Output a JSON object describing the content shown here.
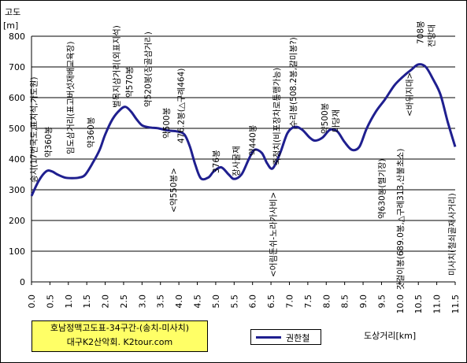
{
  "chart_data": {
    "type": "line",
    "ylabel": "고도",
    "yunit": "[m]",
    "xlabel": "도상거리[km]",
    "ylim": [
      0,
      800
    ],
    "xlim": [
      0,
      11.5
    ],
    "yticks": [
      "0",
      "100",
      "200",
      "300",
      "400",
      "500",
      "600",
      "700",
      "800"
    ],
    "xticks": [
      "0.0",
      "0.5",
      "1.0",
      "1.5",
      "2.0",
      "2.5",
      "3.0",
      "3.5",
      "4.0",
      "4.5",
      "5.0",
      "5.5",
      "6.0",
      "6.5",
      "7.0",
      "7.5",
      "8.0",
      "8.5",
      "9.0",
      "9.5",
      "10.0",
      "10.5",
      "11.0",
      "11.5"
    ],
    "grid": true,
    "series": [
      {
        "name": "권한철",
        "color": "#1f1f8f",
        "x": [
          0.0,
          0.2,
          0.4,
          0.55,
          0.7,
          0.9,
          1.1,
          1.3,
          1.45,
          1.65,
          1.85,
          2.0,
          2.2,
          2.4,
          2.55,
          2.7,
          2.85,
          3.0,
          3.2,
          3.45,
          3.7,
          3.95,
          4.15,
          4.3,
          4.45,
          4.6,
          4.8,
          4.95,
          5.15,
          5.35,
          5.5,
          5.7,
          5.9,
          6.05,
          6.25,
          6.4,
          6.55,
          6.75,
          6.95,
          7.15,
          7.35,
          7.55,
          7.7,
          7.9,
          8.1,
          8.3,
          8.5,
          8.7,
          8.9,
          9.1,
          9.35,
          9.6,
          9.85,
          10.1,
          10.3,
          10.5,
          10.7,
          10.9,
          11.1,
          11.3,
          11.5
        ],
        "y": [
          280,
          330,
          360,
          360,
          350,
          340,
          338,
          340,
          348,
          385,
          430,
          480,
          530,
          560,
          570,
          555,
          530,
          510,
          503,
          500,
          493,
          490,
          480,
          440,
          380,
          337,
          340,
          360,
          373,
          350,
          335,
          350,
          400,
          430,
          420,
          385,
          370,
          420,
          485,
          505,
          495,
          470,
          460,
          470,
          495,
          490,
          455,
          430,
          440,
          500,
          555,
          595,
          640,
          670,
          690,
          708,
          700,
          660,
          610,
          520,
          440
        ]
      }
    ],
    "annotations": [
      {
        "x": 0.05,
        "text": "송치(17번국도,표지석,가도원)"
      },
      {
        "x": 0.45,
        "text": "약360봉"
      },
      {
        "x": 1.05,
        "text": "임도삼거리(표고버섯재배교육장)"
      },
      {
        "x": 1.6,
        "text": "약360봉"
      },
      {
        "x": 2.3,
        "text": "벌목지삼거리(외표지석)"
      },
      {
        "x": 2.65,
        "text": "약570봉"
      },
      {
        "x": 3.15,
        "text": "약520봉(장골삼거리)"
      },
      {
        "x": 3.65,
        "text": "약500봉"
      },
      {
        "x": 4.05,
        "text": "476.2봉(△구례464)"
      },
      {
        "x": 3.85,
        "text": "<약550봉>"
      },
      {
        "x": 5.0,
        "text": "376봉"
      },
      {
        "x": 5.55,
        "text": "장사굴재"
      },
      {
        "x": 6.0,
        "text": "약440봉"
      },
      {
        "x": 6.65,
        "text": "죽청치(비포장차로통행가능)"
      },
      {
        "x": 6.55,
        "text": "<어림든쉬-노라가사비>"
      },
      {
        "x": 7.1,
        "text": "수리봉(508.2봉,갈미봉?)"
      },
      {
        "x": 7.95,
        "text": "약500봉"
      },
      {
        "x": 8.25,
        "text": "마당재"
      },
      {
        "x": 9.5,
        "text": "약630봉(헬기장)"
      },
      {
        "x": 10.0,
        "text": "갓걸이봉(689.0봉,△구례313,산불초소)"
      },
      {
        "x": 10.25,
        "text": "<바위지대>"
      },
      {
        "x": 10.55,
        "text": "708봉"
      },
      {
        "x": 10.85,
        "text": "전망대"
      },
      {
        "x": 11.4,
        "text": "미사치(철쇠골재사거리)"
      }
    ]
  },
  "title_box": {
    "line1": "호남정맥고도표-34구간-(송치-미사치)",
    "line2": "대구K2산악회. K2tour.com"
  },
  "legend": {
    "label": "권한철"
  }
}
